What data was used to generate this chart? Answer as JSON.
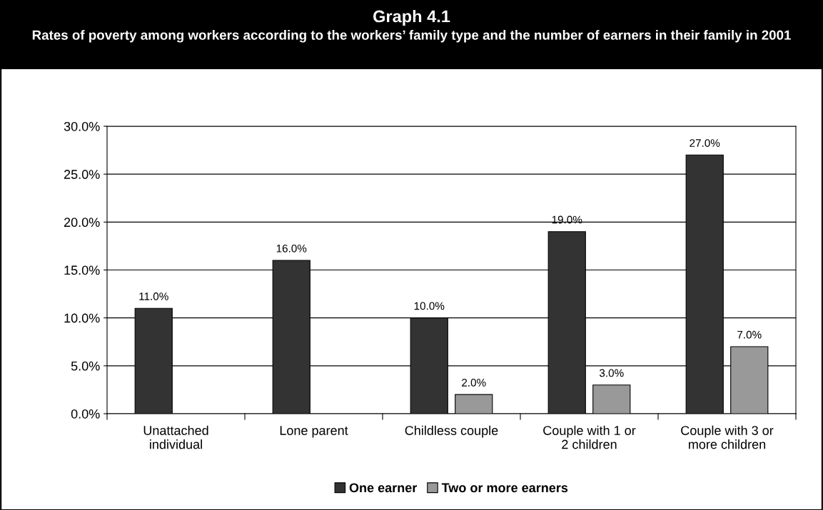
{
  "chart_data": {
    "type": "bar",
    "title": "Graph 4.1",
    "subtitle": "Rates of poverty among workers according to the workers’ family type and the number of earners in their family in 2001",
    "categories": [
      "Unattached individual",
      "Lone parent",
      "Childless couple",
      "Couple with 1 or 2 children",
      "Couple with 3 or more children"
    ],
    "series": [
      {
        "name": "One earner",
        "color": "#333333",
        "values": [
          11,
          16,
          10,
          19,
          27
        ],
        "value_labels": [
          "11.0%",
          "16.0%",
          "10.0%",
          "19.0%",
          "27.0%"
        ]
      },
      {
        "name": "Two or more earners",
        "color": "#999999",
        "values": [
          null,
          null,
          2,
          3,
          7
        ],
        "value_labels": [
          null,
          null,
          "2.0%",
          "3.0%",
          "7.0%"
        ]
      }
    ],
    "ylim": [
      0,
      30
    ],
    "yticks": [
      {
        "value": 0,
        "label": "0.0%"
      },
      {
        "value": 5,
        "label": "5.0%"
      },
      {
        "value": 10,
        "label": "10.0%"
      },
      {
        "value": 15,
        "label": "15.0%"
      },
      {
        "value": 20,
        "label": "20.0%"
      },
      {
        "value": 25,
        "label": "25.0%"
      },
      {
        "value": 30,
        "label": "30.0%"
      }
    ],
    "grid": "y",
    "legend": "bottom"
  }
}
